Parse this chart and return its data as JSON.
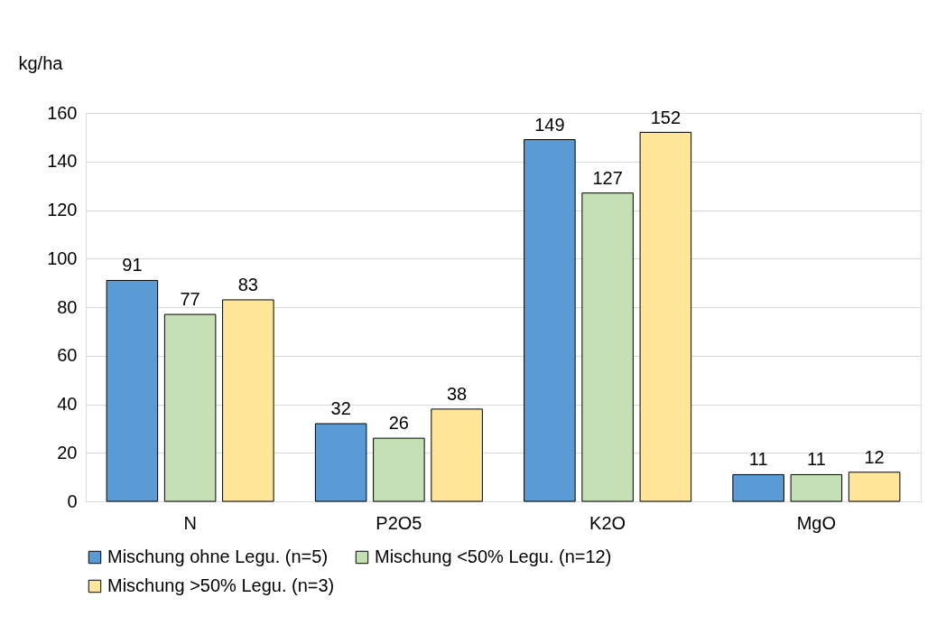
{
  "chart_data": {
    "type": "bar",
    "ylabel": "kg/ha",
    "categories": [
      "N",
      "P2O5",
      "K2O",
      "MgO"
    ],
    "series": [
      {
        "name": "Mischung ohne Legu. (n=5)",
        "color": "#5b9bd5",
        "values": [
          91,
          32,
          149,
          11
        ]
      },
      {
        "name": "Mischung <50% Legu. (n=12)",
        "color": "#c5e0b4",
        "values": [
          77,
          26,
          127,
          11
        ]
      },
      {
        "name": "Mischung >50% Legu. (n=3)",
        "color": "#ffe699",
        "values": [
          83,
          38,
          152,
          12
        ]
      }
    ],
    "ylim": [
      0,
      160
    ],
    "yticks": [
      0,
      20,
      40,
      60,
      80,
      100,
      120,
      140,
      160
    ],
    "grid": "y",
    "legend": "bottom",
    "data_labels": true
  }
}
